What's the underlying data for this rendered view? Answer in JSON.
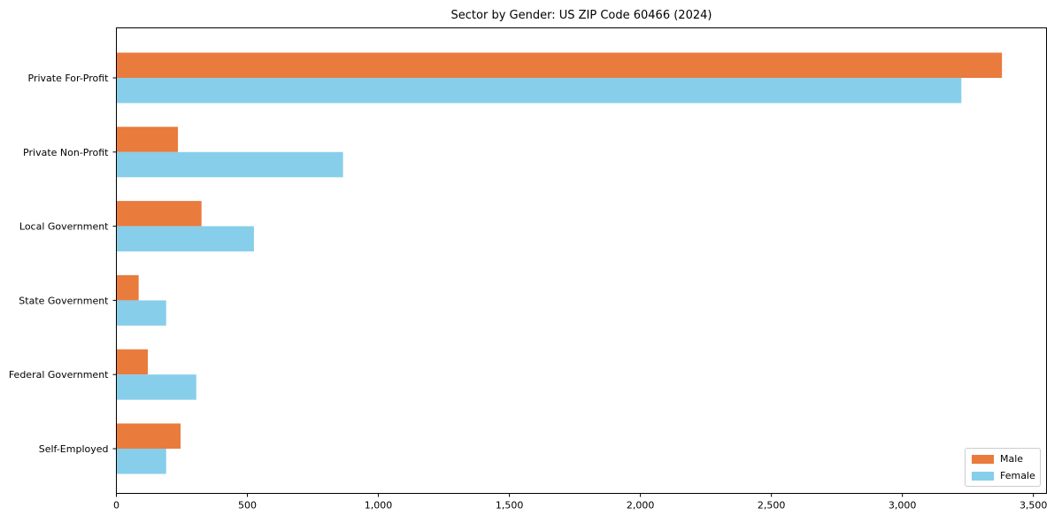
{
  "chart_data": {
    "type": "bar",
    "orientation": "horizontal",
    "title": "Sector by Gender: US ZIP Code 60466 (2024)",
    "categories": [
      "Private For-Profit",
      "Private Non-Profit",
      "Local Government",
      "State Government",
      "Federal Government",
      "Self-Employed"
    ],
    "series": [
      {
        "name": "Male",
        "color": "#E97B3D",
        "values": [
          3380,
          235,
          325,
          85,
          120,
          245
        ]
      },
      {
        "name": "Female",
        "color": "#87CEEB",
        "values": [
          3225,
          865,
          525,
          190,
          305,
          190
        ]
      }
    ],
    "xlabel": "",
    "ylabel": "",
    "xlim": [
      0,
      3550
    ],
    "xticks": [
      0,
      500,
      1000,
      1500,
      2000,
      2500,
      3000,
      3500
    ],
    "xtick_labels": [
      "0",
      "500",
      "1,000",
      "1,500",
      "2,000",
      "2,500",
      "3,000",
      "3,500"
    ],
    "grid": false,
    "legend_position": "lower right",
    "colors": {
      "male": "#E97B3D",
      "female": "#87CEEB",
      "axis": "#000000",
      "legend_border": "#cccccc",
      "background": "#ffffff"
    }
  }
}
